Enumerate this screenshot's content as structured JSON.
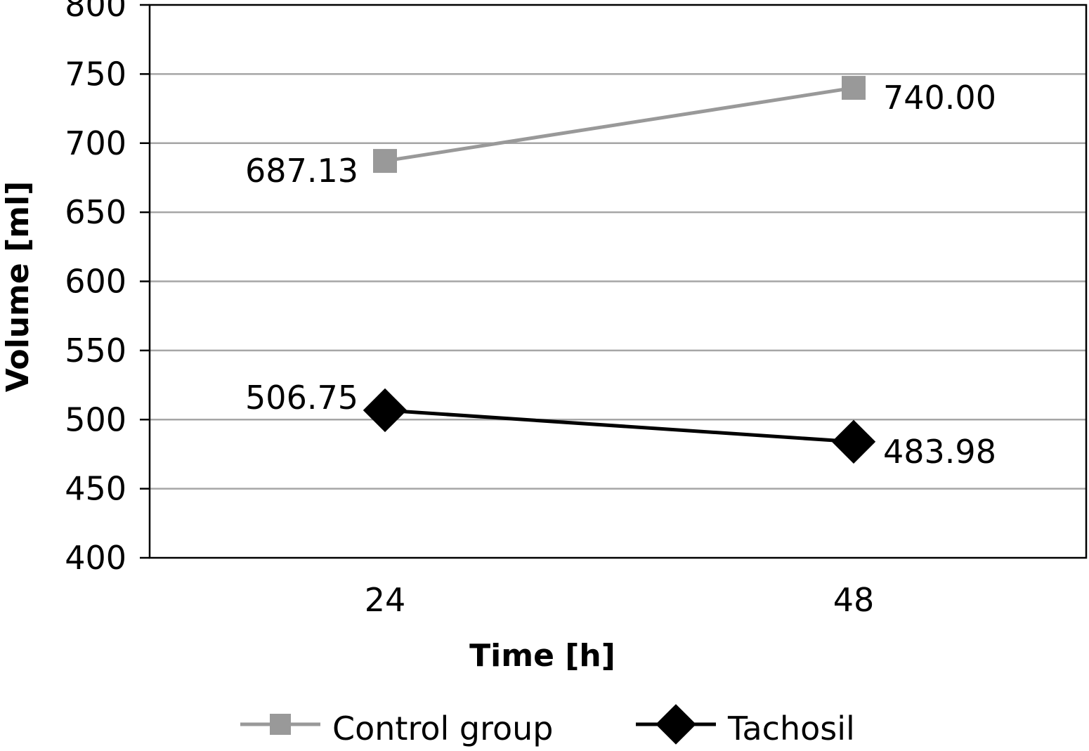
{
  "chart_data": {
    "type": "line",
    "title": "",
    "xlabel": "Time [h]",
    "ylabel": "Volume [ml]",
    "categories": [
      "24",
      "48"
    ],
    "ylim": [
      400,
      800
    ],
    "yticks": [
      400,
      450,
      500,
      550,
      600,
      650,
      700,
      750,
      800
    ],
    "grid": true,
    "legend_position": "bottom",
    "series": [
      {
        "name": "Control group",
        "values": [
          687.13,
          740.0
        ],
        "labels": [
          "687.13",
          "740.00"
        ],
        "color": "#999999",
        "marker": "square"
      },
      {
        "name": "Tachosil",
        "values": [
          506.75,
          483.98
        ],
        "labels": [
          "506.75",
          "483.98"
        ],
        "color": "#000000",
        "marker": "diamond"
      }
    ]
  }
}
